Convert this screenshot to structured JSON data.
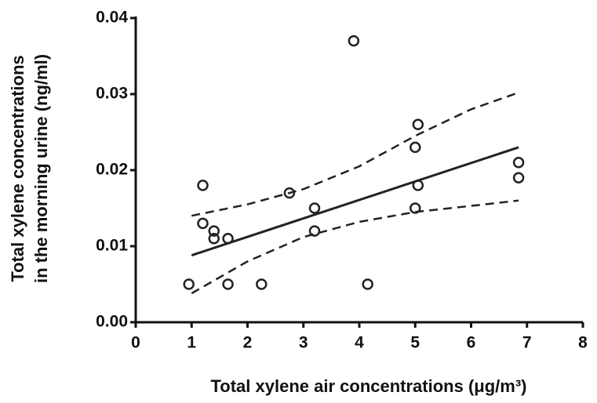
{
  "chart_data": {
    "type": "scatter",
    "xlabel": "Total xylene air concentrations (μg/m³)",
    "ylabel": [
      "Total xylene concentrations",
      "in the morning urine (ng/ml)"
    ],
    "x": [
      0.95,
      1.2,
      1.2,
      1.4,
      1.4,
      1.65,
      1.65,
      2.25,
      2.75,
      3.2,
      3.2,
      3.9,
      4.15,
      5.0,
      5.05,
      5.05,
      5.0,
      6.85,
      6.85
    ],
    "values": [
      0.005,
      0.018,
      0.013,
      0.012,
      0.011,
      0.011,
      0.005,
      0.005,
      0.017,
      0.015,
      0.012,
      0.037,
      0.005,
      0.023,
      0.026,
      0.018,
      0.015,
      0.021,
      0.019
    ],
    "color": "#222222",
    "lines": [
      {
        "x": [
          1,
          6.85
        ],
        "values": [
          0.0088,
          0.023
        ],
        "dashed": false
      },
      {
        "x": [
          1,
          2,
          3,
          4,
          5,
          6,
          6.85
        ],
        "values": [
          0.014,
          0.0155,
          0.0175,
          0.0205,
          0.0245,
          0.028,
          0.0302
        ],
        "dashed": true
      },
      {
        "x": [
          1,
          2,
          3,
          4,
          5,
          6,
          6.85
        ],
        "values": [
          0.0038,
          0.008,
          0.0112,
          0.0132,
          0.0145,
          0.0153,
          0.016
        ],
        "dashed": true
      }
    ],
    "xlim": [
      0,
      8
    ],
    "xticks": [
      0,
      1,
      2,
      3,
      4,
      5,
      6,
      7,
      8
    ],
    "ylim": [
      0,
      0.04
    ],
    "yticks": [
      {
        "value": 0,
        "label": "0.00"
      },
      0.01,
      0.02,
      0.03,
      0.04
    ],
    "grid": false
  }
}
